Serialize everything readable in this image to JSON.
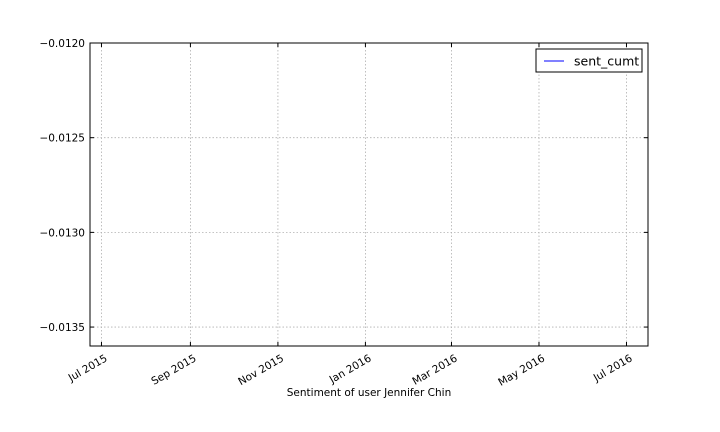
{
  "chart_data": {
    "type": "line",
    "title": "",
    "xlabel": "Sentiment of user Jennifer Chin",
    "ylabel": "",
    "x_axis_type": "date",
    "xlim": [
      "2015-06-23",
      "2016-07-16"
    ],
    "ylim": [
      -0.0136,
      -0.012
    ],
    "x_ticks": [
      {
        "date": "2015-07-01",
        "label": "Jul 2015"
      },
      {
        "date": "2015-09-01",
        "label": "Sep 2015"
      },
      {
        "date": "2015-11-01",
        "label": "Nov 2015"
      },
      {
        "date": "2016-01-01",
        "label": "Jan 2016"
      },
      {
        "date": "2016-03-01",
        "label": "Mar 2016"
      },
      {
        "date": "2016-05-01",
        "label": "May 2016"
      },
      {
        "date": "2016-07-01",
        "label": "Jul 2016"
      }
    ],
    "y_ticks": [
      {
        "value": -0.012,
        "label": "−0.0120"
      },
      {
        "value": -0.0125,
        "label": "−0.0125"
      },
      {
        "value": -0.013,
        "label": "−0.0130"
      },
      {
        "value": -0.0135,
        "label": "−0.0135"
      }
    ],
    "grid": true,
    "legend_position": "top-right",
    "series": [
      {
        "name": "sent_cumt",
        "color": "#0000ff",
        "points": []
      }
    ]
  }
}
